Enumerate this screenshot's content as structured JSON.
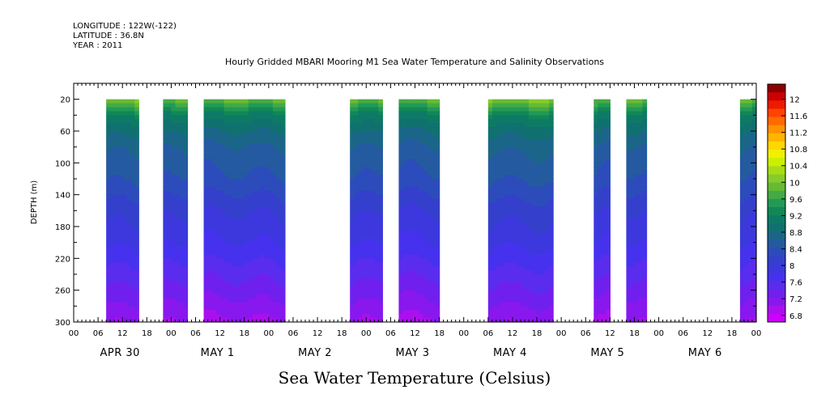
{
  "header": {
    "longitude": "LONGITUDE : 122W(-122)",
    "latitude": "LATITUDE : 36.8N",
    "year": "YEAR : 2011"
  },
  "chart_data": {
    "type": "heatmap",
    "title": "Hourly Gridded MBARI Mooring M1 Sea Water Temperature and Salinity Observations",
    "xlabel": "Sea Water Temperature (Celsius)",
    "ylabel": "DEPTH (m)",
    "ylim": [
      300,
      0
    ],
    "yticks": [
      20,
      60,
      100,
      140,
      180,
      220,
      260,
      300
    ],
    "xlim_hours": [
      0,
      168
    ],
    "hour_ticks": [
      "00",
      "06",
      "12",
      "18",
      "00",
      "06",
      "12",
      "18",
      "00",
      "06",
      "12",
      "18",
      "00",
      "06",
      "12",
      "18",
      "00",
      "06",
      "12",
      "18",
      "00",
      "06",
      "12",
      "18",
      "00",
      "06",
      "12",
      "18",
      "00"
    ],
    "day_labels": [
      "APR 30",
      "MAY  1",
      "MAY  2",
      "MAY  3",
      "MAY  4",
      "MAY  5",
      "MAY  6"
    ],
    "colorbar": {
      "labels": [
        "12",
        "11.6",
        "11.2",
        "10.8",
        "10.4",
        "10",
        "9.6",
        "9.2",
        "8.8",
        "8.4",
        "8",
        "7.6",
        "7.2",
        "6.8"
      ],
      "colors": [
        "#8b0000",
        "#cc0000",
        "#ee1a00",
        "#ff4400",
        "#ff6a00",
        "#ff9200",
        "#ffb400",
        "#ffd700",
        "#f0f000",
        "#ccee00",
        "#a8dc14",
        "#86cc2a",
        "#66bb33",
        "#44aa44",
        "#229955",
        "#118855",
        "#0d7a66",
        "#117070",
        "#1b6688",
        "#245aa0",
        "#2c4cbb",
        "#3440cc",
        "#3c38dd",
        "#4632ee",
        "#5a2cee",
        "#7020ee",
        "#8818ee",
        "#aa10ee",
        "#cc00ff"
      ]
    },
    "data_segments_hours": [
      {
        "start": 8,
        "end": 16
      },
      {
        "start": 22,
        "end": 28
      },
      {
        "start": 32,
        "end": 52
      },
      {
        "start": 68,
        "end": 76
      },
      {
        "start": 80,
        "end": 90
      },
      {
        "start": 102,
        "end": 118
      },
      {
        "start": 128,
        "end": 132
      },
      {
        "start": 136,
        "end": 141
      },
      {
        "start": 164,
        "end": 168
      }
    ],
    "temperature_profile": [
      {
        "depth": 20,
        "temp": 9.8
      },
      {
        "depth": 40,
        "temp": 9.1
      },
      {
        "depth": 60,
        "temp": 8.8
      },
      {
        "depth": 80,
        "temp": 8.6
      },
      {
        "depth": 100,
        "temp": 8.5
      },
      {
        "depth": 120,
        "temp": 8.4
      },
      {
        "depth": 140,
        "temp": 8.25
      },
      {
        "depth": 160,
        "temp": 8.1
      },
      {
        "depth": 180,
        "temp": 8.0
      },
      {
        "depth": 200,
        "temp": 7.9
      },
      {
        "depth": 220,
        "temp": 7.75
      },
      {
        "depth": 240,
        "temp": 7.6
      },
      {
        "depth": 260,
        "temp": 7.45
      },
      {
        "depth": 280,
        "temp": 7.3
      },
      {
        "depth": 300,
        "temp": 7.15
      }
    ]
  }
}
